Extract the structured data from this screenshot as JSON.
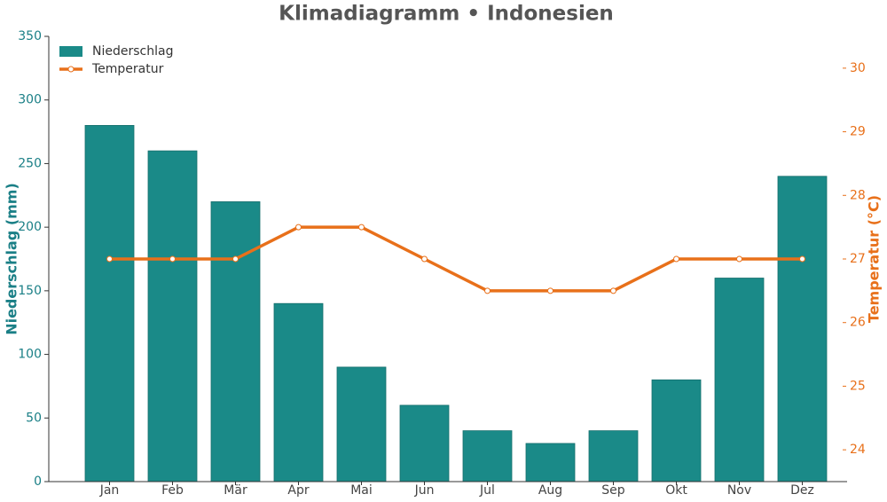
{
  "chart_data": {
    "type": "bar-line",
    "title": "Klimadiagramm • Indonesien",
    "categories": [
      "Jan",
      "Feb",
      "Mär",
      "Apr",
      "Mai",
      "Jun",
      "Jul",
      "Aug",
      "Sep",
      "Okt",
      "Nov",
      "Dez"
    ],
    "ylabel": "Niederschlag (mm)",
    "y2label": "Temperatur (°C)",
    "series": [
      {
        "name": "Niederschlag",
        "color": "#1a8a88",
        "type": "bar",
        "values": [
          280,
          260,
          220,
          140,
          90,
          60,
          40,
          30,
          40,
          80,
          160,
          240
        ]
      },
      {
        "name": "Temperatur",
        "color": "#e8701a",
        "type": "line",
        "axis": "y2",
        "values": [
          27,
          27,
          27,
          27.5,
          27.5,
          27,
          26.5,
          26.5,
          26.5,
          27,
          27,
          27
        ]
      }
    ],
    "ylim": [
      0,
      350
    ],
    "yticks": [
      0,
      50,
      100,
      150,
      200,
      250,
      300,
      350
    ],
    "y2lim": [
      23.5,
      30.5
    ],
    "y2ticks": [
      24,
      25,
      26,
      27,
      28,
      29,
      30
    ],
    "legend": "upper left"
  }
}
